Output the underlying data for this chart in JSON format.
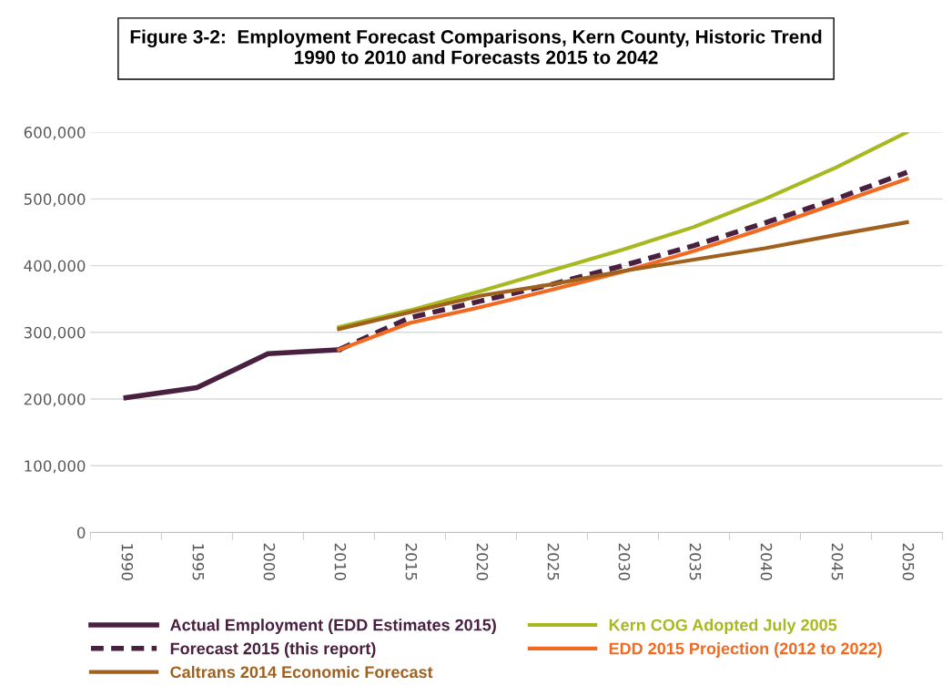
{
  "chart_data": {
    "type": "line",
    "title": "Figure 3-2:  Employment Forecast Comparisons, Kern County, Historic Trend\n1990 to 2010 and Forecasts 2015 to 2042",
    "categories": [
      "1990",
      "1995",
      "2000",
      "2010",
      "2015",
      "2020",
      "2025",
      "2030",
      "2035",
      "2040",
      "2045",
      "2050"
    ],
    "series": [
      {
        "name": "Actual Employment (EDD Estimates 2015)",
        "color": "#4a2040",
        "line_style": "solid",
        "values": [
          202000,
          217000,
          268000,
          274000,
          null,
          null,
          null,
          null,
          null,
          null,
          null,
          null
        ]
      },
      {
        "name": "Kern COG Adopted July 2005",
        "color": "#a8b820",
        "line_style": "solid",
        "values": [
          null,
          null,
          null,
          308000,
          333000,
          362000,
          393000,
          424000,
          458000,
          500000,
          547000,
          600000
        ]
      },
      {
        "name": "Forecast 2015 (this report)",
        "color": "#4a2040",
        "line_style": "dashed",
        "values": [
          null,
          null,
          null,
          274000,
          322000,
          347000,
          372000,
          400000,
          430000,
          464000,
          500000,
          540000
        ]
      },
      {
        "name": "EDD 2015 Projection (2012 to 2022)",
        "color": "#f06a22",
        "line_style": "solid",
        "values": [
          null,
          null,
          null,
          274000,
          314000,
          338000,
          364000,
          391000,
          422000,
          456000,
          493000,
          530000
        ]
      },
      {
        "name": "Caltrans 2014 Economic Forecast",
        "color": "#a0601e",
        "line_style": "solid",
        "values": [
          null,
          null,
          null,
          305000,
          330000,
          355000,
          372000,
          392000,
          409000,
          426000,
          446000,
          465000
        ]
      }
    ],
    "ylim": [
      0,
      600000
    ],
    "yticks": [
      {
        "value": 0,
        "label": "0"
      },
      {
        "value": 100000,
        "label": "100,000"
      },
      {
        "value": 200000,
        "label": "200,000"
      },
      {
        "value": 300000,
        "label": "300,000"
      },
      {
        "value": 400000,
        "label": "400,000"
      },
      {
        "value": 500000,
        "label": "500,000"
      },
      {
        "value": 600000,
        "label": "600,000"
      }
    ],
    "grid": "y",
    "legend": "bottom",
    "marker": "none"
  }
}
